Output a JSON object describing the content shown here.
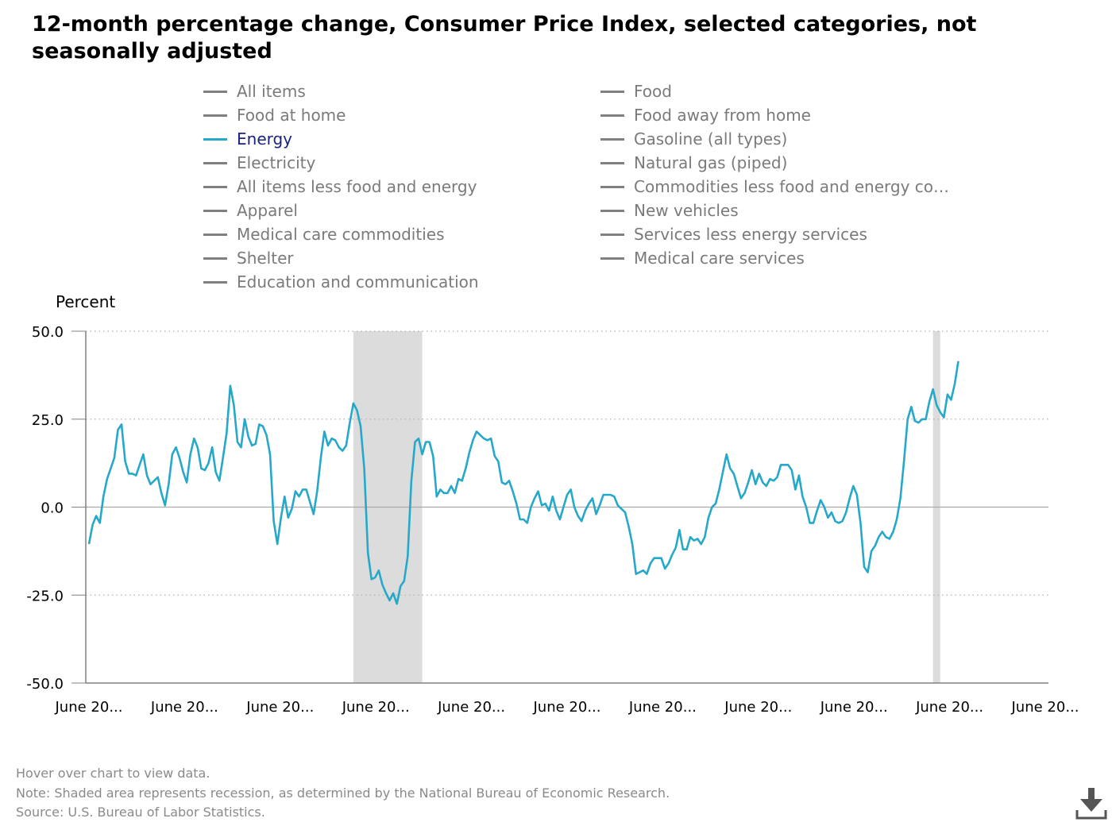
{
  "title": "12-month percentage change, Consumer Price Index, selected categories, not seasonally adjusted",
  "legend": {
    "left": [
      "All items",
      "Food at home",
      "Energy",
      "Electricity",
      "All items less food and energy",
      "Apparel",
      "Medical care commodities",
      "Shelter",
      "Education and communication"
    ],
    "right": [
      "Food",
      "Food away from home",
      "Gasoline (all types)",
      "Natural gas (piped)",
      "Commodities less food and energy com...",
      "New vehicles",
      "Services less energy services",
      "Medical care services"
    ],
    "active": "Energy"
  },
  "colors": {
    "active_series": "#26a9c8",
    "inactive_series": "#808080",
    "recession": "#dcdcdc",
    "axis": "#808080"
  },
  "chart_data": {
    "type": "line",
    "ylabel": "Percent",
    "ylim": [
      -50,
      50
    ],
    "yticks": [
      "50.0",
      "25.0",
      "0.0",
      "-25.0",
      "-50.0"
    ],
    "xtick_labels": [
      "June 20...",
      "June 20...",
      "June 20...",
      "June 20...",
      "June 20...",
      "June 20...",
      "June 20...",
      "June 20...",
      "June 20...",
      "June 20...",
      "June 20..."
    ],
    "x_start_label": "June 20...",
    "months_total": 265,
    "recessions": [
      [
        73,
        92
      ],
      [
        233,
        235
      ]
    ],
    "grid": "dotted horizontal",
    "series": [
      {
        "name": "Energy",
        "values": [
          -10.5,
          -5,
          -2.5,
          -4.5,
          3,
          8,
          11,
          14,
          22,
          23.5,
          13,
          9.5,
          9.5,
          9,
          12,
          15,
          9,
          6.5,
          7.5,
          8.5,
          4,
          0.5,
          6.5,
          15,
          17,
          14,
          10,
          7,
          15,
          19.5,
          17,
          11,
          10.5,
          12.5,
          17,
          10,
          7.5,
          14,
          21,
          34.5,
          29,
          18.5,
          17,
          25,
          20,
          17.5,
          18,
          23.5,
          23,
          20.5,
          15,
          -4,
          -10.5,
          -3,
          3,
          -3,
          -0.5,
          4.5,
          3,
          5,
          5,
          1.5,
          -2,
          4.5,
          14,
          21.5,
          17.5,
          19.5,
          19,
          17,
          16,
          17.5,
          24,
          29.5,
          27.5,
          23,
          11,
          -13,
          -20.5,
          -20,
          -18,
          -22,
          -24.5,
          -26.5,
          -24.5,
          -27.5,
          -22.5,
          -21,
          -14,
          7.5,
          18.5,
          19.5,
          15,
          18.5,
          18.5,
          14.5,
          3,
          5,
          4,
          4,
          6,
          4,
          8,
          7.5,
          11,
          15.5,
          19,
          21.5,
          20.5,
          19.5,
          19,
          19.5,
          14.5,
          13,
          7,
          6.5,
          7.5,
          4.5,
          1,
          -3.5,
          -3.5,
          -4.5,
          0,
          2.5,
          4.5,
          0.5,
          1,
          -1,
          3,
          -1,
          -3.5,
          0,
          3.5,
          5,
          0,
          -2.5,
          -4,
          -1,
          1,
          2.5,
          -2,
          0.5,
          3.5,
          3.5,
          3.5,
          3,
          0.5,
          -0.5,
          -1.5,
          -5.5,
          -10.5,
          -19,
          -18.5,
          -18,
          -19,
          -16,
          -14.5,
          -14.5,
          -14.5,
          -17.5,
          -16,
          -13.5,
          -11.5,
          -6.5,
          -12,
          -12,
          -8.5,
          -9.5,
          -9,
          -10.5,
          -8.5,
          -3,
          0,
          1,
          5,
          10,
          15,
          11,
          9.5,
          6,
          2.5,
          4,
          7,
          10.5,
          6.5,
          9.5,
          7,
          6,
          8,
          7.5,
          8.5,
          12,
          12,
          12,
          10.5,
          5,
          9,
          3,
          0,
          -4.5,
          -4.5,
          -1,
          2,
          0,
          -3,
          -1.5,
          -4,
          -4.5,
          -4,
          -1.5,
          2.5,
          6,
          3.5,
          -4.5,
          -17,
          -18.5,
          -12.5,
          -11,
          -8.5,
          -7,
          -8.5,
          -9,
          -7,
          -3.5,
          2.5,
          13,
          25,
          28.5,
          24.5,
          24,
          25,
          25,
          30,
          33.5,
          29,
          27,
          25.5,
          32,
          30.5,
          35,
          41.5
        ]
      }
    ]
  },
  "footer": {
    "hover": "Hover over chart to view data.",
    "note": "Note: Shaded area represents recession, as determined by the National Bureau of Economic Research.",
    "source": "Source: U.S. Bureau of Labor Statistics."
  },
  "download_icon": "download-icon"
}
